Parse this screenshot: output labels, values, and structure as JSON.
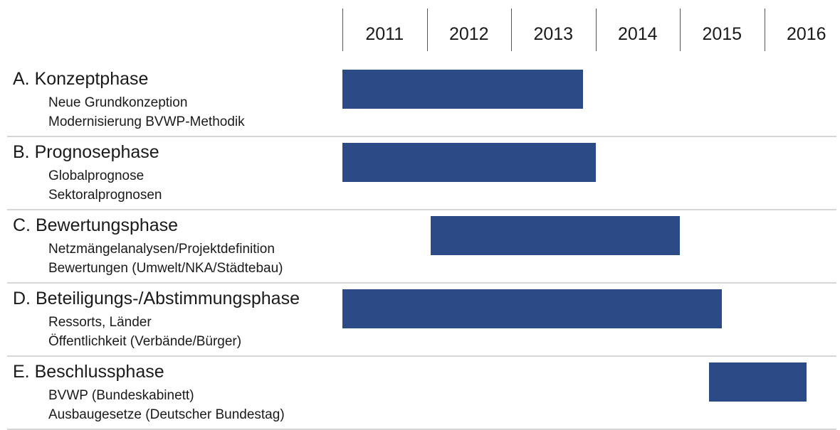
{
  "chart_data": {
    "type": "gantt",
    "years": [
      "2011",
      "2012",
      "2013",
      "2014",
      "2015",
      "2016"
    ],
    "phases": [
      {
        "title": "A. Konzeptphase",
        "subitems": [
          "Neue Grundkonzeption",
          "Modernisierung BVWP-Methodik"
        ],
        "start": 2011.0,
        "end": 2013.85
      },
      {
        "title": "B. Prognosephase",
        "subitems": [
          "Globalprognose",
          "Sektoralprognosen"
        ],
        "start": 2011.0,
        "end": 2014.0
      },
      {
        "title": "C. Bewertungsphase",
        "subitems": [
          "Netzmängelanalysen/Projektdefinition",
          "Bewertungen (Umwelt/NKA/Städtebau)"
        ],
        "start": 2012.05,
        "end": 2015.0
      },
      {
        "title": "D. Beteiligungs-/Abstimmungsphase",
        "subitems": [
          "Ressorts, Länder",
          "Öffentlichkeit (Verbände/Bürger)"
        ],
        "start": 2011.0,
        "end": 2015.5
      },
      {
        "title": "E. Beschlussphase",
        "subitems": [
          "BVWP (Bundeskabinett)",
          "Ausbaugesetze (Deutscher Bundestag)"
        ],
        "start": 2015.35,
        "end": 2016.5
      }
    ],
    "colors": {
      "bar": "#2c4b86",
      "separator": "#d6d6d6",
      "tick": "#555555"
    }
  }
}
